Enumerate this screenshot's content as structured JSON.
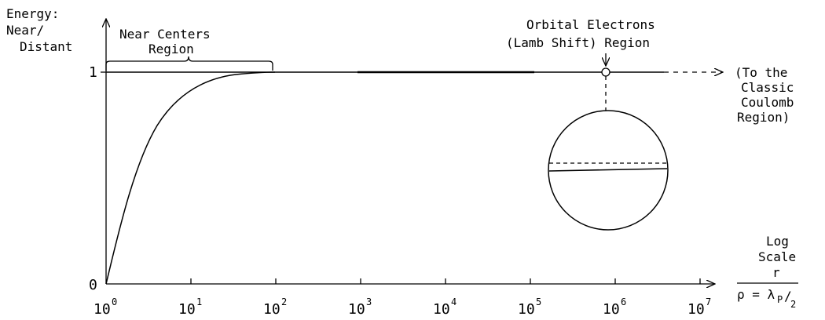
{
  "y_axis_label": [
    "Energy:",
    "Near/",
    "Distant"
  ],
  "y_ticks": [
    {
      "label": "1",
      "value": 1
    },
    {
      "label": "0",
      "value": 0
    }
  ],
  "x_ticks": [
    {
      "base": "10",
      "exp": "0"
    },
    {
      "base": "10",
      "exp": "1"
    },
    {
      "base": "10",
      "exp": "2"
    },
    {
      "base": "10",
      "exp": "3"
    },
    {
      "base": "10",
      "exp": "4"
    },
    {
      "base": "10",
      "exp": "5"
    },
    {
      "base": "10",
      "exp": "6"
    },
    {
      "base": "10",
      "exp": "7"
    }
  ],
  "near_centers_label": [
    "Near Centers",
    "Region"
  ],
  "orbital_label": [
    "Orbital Electrons",
    "(Lamb Shift) Region"
  ],
  "classic_label": [
    "(To the",
    "Classic",
    "Coulomb",
    "Region)"
  ],
  "x_axis_label": {
    "line1": "Log",
    "line2": "Scale",
    "numerator": "r",
    "denominator": "ρ = λ",
    "sub": "P",
    "slash": "/",
    "two": "2"
  }
}
